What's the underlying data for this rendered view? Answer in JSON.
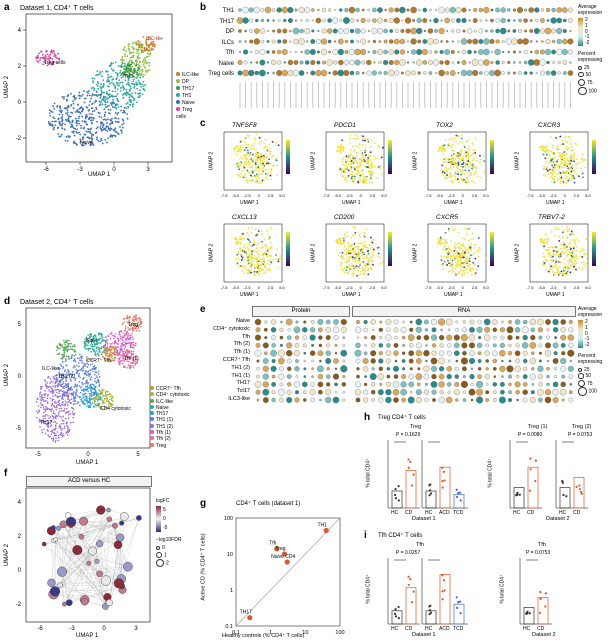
{
  "panels": {
    "a": {
      "letter": "a",
      "title": "Dataset 1, CD4⁺ T cells",
      "xlabel": "UMAP 1",
      "ylabel": "UMAP 2",
      "xticks": [
        "-6",
        "-3",
        "0",
        "3"
      ],
      "yticks": [
        "4",
        "2",
        "0",
        "-2"
      ],
      "legend": [
        {
          "label": "ILC-like",
          "color": "#c97a2a"
        },
        {
          "label": "DP",
          "color": "#8fbf3f"
        },
        {
          "label": "TH17",
          "color": "#3a9a4a"
        },
        {
          "label": "TH1",
          "color": "#2ea8a0"
        },
        {
          "label": "Naive",
          "color": "#3b6fb5"
        },
        {
          "label": "Treg cells",
          "color": "#d6459a"
        }
      ],
      "labels": [
        "ILC-like",
        "Naive",
        "TH1",
        "Treg cells"
      ]
    },
    "b": {
      "letter": "b",
      "rows": [
        "TH1",
        "TH17",
        "DP",
        "ILCs",
        "Tfh",
        "Naive",
        "Treg cells"
      ],
      "legend_title": "Average expression",
      "legend_ticks": [
        "2",
        "1",
        "0",
        "-1",
        "-2"
      ],
      "pct_title": "Percent expressing",
      "pct_values": [
        "25",
        "50",
        "75",
        "100"
      ]
    },
    "c": {
      "letter": "c",
      "genes": [
        "TNFSF8",
        "PDCD1",
        "TOX2",
        "CXCR3",
        "CXCL13",
        "CD200",
        "CXCR5",
        "TRBV7-2"
      ],
      "xticks": [
        "-7.5",
        "-5.0",
        "-2.5",
        "0",
        "2.5",
        "5.0"
      ],
      "xlabel": "UMAP 1",
      "ylabel": "UMAP 2"
    },
    "d": {
      "letter": "d",
      "title": "Dataset 2, CD4⁺ T cells",
      "xlabel": "UMAP 1",
      "ylabel": "UMAP 2",
      "xticks": [
        "-5",
        "0",
        "5"
      ],
      "yticks": [
        "5",
        "0",
        "-5"
      ],
      "legend": [
        {
          "label": "CCR7⁺ Tfh",
          "color": "#c79a3a"
        },
        {
          "label": "CD4⁺ cytotoxic",
          "color": "#a4b83a"
        },
        {
          "label": "ILC-like",
          "color": "#5aa85a"
        },
        {
          "label": "Naive",
          "color": "#2eae9e"
        },
        {
          "label": "TH17",
          "color": "#2aa3c8"
        },
        {
          "label": "TH1 (1)",
          "color": "#5a7fd8"
        },
        {
          "label": "TH1 (2)",
          "color": "#9a6ad8"
        },
        {
          "label": "Tfh (1)",
          "color": "#d85ac8"
        },
        {
          "label": "Tfh (2)",
          "color": "#e86a9a"
        },
        {
          "label": "Treg",
          "color": "#e07a6a"
        }
      ],
      "labels": [
        "Naive",
        "ILC-like",
        "CCR7⁺ Tfh",
        "Treg",
        "Tfh (1)",
        "TH17",
        "CD4 cytotoxic",
        "TH1 (2)"
      ]
    },
    "e": {
      "letter": "e",
      "rows": [
        "Naive",
        "CD4⁺ cytotoxic",
        "Tfh",
        "Tfh (2)",
        "Tfh (1)",
        "CCR7⁺ Tfh",
        "TH1 (2)",
        "TH1 (1)",
        "TH17",
        "Tct17",
        "ILC3-like"
      ],
      "header_protein": "Protein",
      "header_rna": "RNA",
      "legend_title": "Average expression",
      "legend_ticks": [
        "2",
        "1",
        "0",
        "-1",
        "-2"
      ],
      "pct_title": "Percent expressing",
      "pct_values": [
        "25",
        "50",
        "75",
        "100"
      ]
    },
    "f": {
      "letter": "f",
      "title": "ACD versus HC",
      "xlabel": "UMAP 1",
      "ylabel": "UMAP 2",
      "xticks": [
        "-6",
        "-3",
        "0",
        "3"
      ],
      "yticks": [
        "4",
        "2",
        "0",
        "-2"
      ],
      "legend_fc": "logFC",
      "fc_ticks": [
        "5",
        "0",
        "-5"
      ],
      "legend_fdr": "−log10FDR",
      "fdr_values": [
        "0",
        "1",
        "2"
      ]
    },
    "g": {
      "letter": "g",
      "title": "CD4⁺ T cells (dataset 1)",
      "xlabel": "Healthy controls (% CD4⁺ T cells)",
      "ylabel": "Active CD (% CD4⁺ T cells)",
      "ticks": [
        "0.1",
        "1",
        "10",
        "100"
      ],
      "labels": [
        "Tfh",
        "Treg",
        "Naive CD4",
        "TH17",
        "TH1"
      ]
    },
    "h": {
      "letter": "h",
      "title": "Treg CD4⁺ T cells",
      "sub1": "Treg",
      "sub2a": "Treg (1)",
      "sub2b": "Treg (2)",
      "p1": "P = 0.1629",
      "p2": "P = 0.0080",
      "p3": "P = 0.0753",
      "ylabel": "% total CD4⁺",
      "groups1": [
        "HC",
        "CD",
        "HC",
        "ACD",
        "TCD"
      ],
      "groups2": [
        "HC",
        "CD"
      ],
      "groups3": [
        "HC",
        "CD"
      ],
      "dataset1": "Dataset 1",
      "dataset2": "Dataset 2"
    },
    "i": {
      "letter": "i",
      "title": "Tfh CD4⁺ T cells",
      "sub1": "Tfh",
      "sub2": "Tfh",
      "p1": "P = 0.0257",
      "p2": "P = 0.0753",
      "ylabel": "% total CD4⁺",
      "groups1": [
        "HC",
        "CD",
        "HC",
        "ACD",
        "TCD"
      ],
      "groups2": [
        "HC",
        "CD"
      ],
      "dataset1": "Dataset 1",
      "dataset2": "Dataset 2"
    }
  },
  "chart_data": {
    "type": "scatter",
    "title": "CD4⁺ T cells (dataset 1)",
    "xlabel": "Healthy controls (% CD4⁺ T cells)",
    "ylabel": "Active CD (% CD4⁺ T cells)",
    "xscale": "log",
    "yscale": "log",
    "xlim": [
      0.1,
      100
    ],
    "ylim": [
      0.1,
      100
    ],
    "points": [
      {
        "label": "Tfh",
        "x": 1.5,
        "y": 14
      },
      {
        "label": "Treg",
        "x": 2.5,
        "y": 10
      },
      {
        "label": "Naive CD4",
        "x": 3,
        "y": 6
      },
      {
        "label": "TH17",
        "x": 0.25,
        "y": 0.17
      },
      {
        "label": "TH1",
        "x": 40,
        "y": 45
      }
    ]
  }
}
